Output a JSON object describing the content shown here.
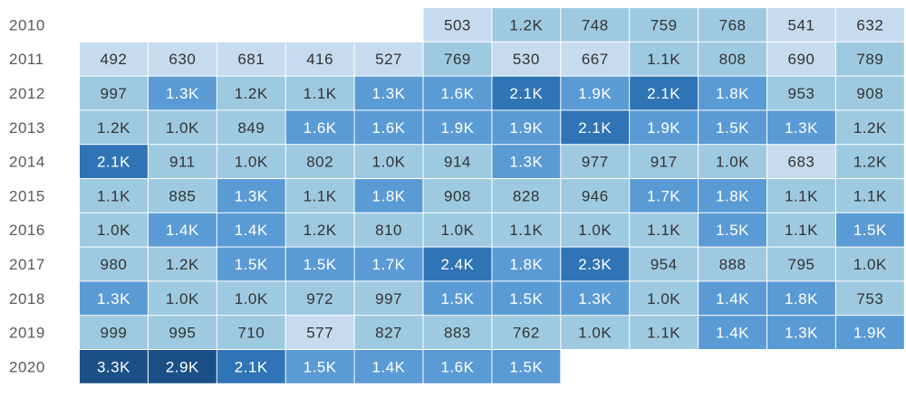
{
  "chart_data": {
    "type": "heatmap",
    "title": "",
    "xlabel": "",
    "ylabel": "",
    "rows": [
      "2010",
      "2011",
      "2012",
      "2013",
      "2014",
      "2015",
      "2016",
      "2017",
      "2018",
      "2019",
      "2020"
    ],
    "columns": 12,
    "row_start_column": [
      5,
      0,
      0,
      0,
      0,
      0,
      0,
      0,
      0,
      0,
      0
    ],
    "values": [
      [
        503,
        1200,
        748,
        759,
        768,
        541,
        632
      ],
      [
        492,
        630,
        681,
        416,
        527,
        769,
        530,
        667,
        1100,
        808,
        690,
        789
      ],
      [
        997,
        1300,
        1200,
        1100,
        1300,
        1600,
        2100,
        1900,
        2100,
        1800,
        953,
        908
      ],
      [
        1200,
        1000,
        849,
        1600,
        1600,
        1900,
        1900,
        2100,
        1900,
        1500,
        1300,
        1200
      ],
      [
        2100,
        911,
        1000,
        802,
        1000,
        914,
        1300,
        977,
        917,
        1000,
        683,
        1200
      ],
      [
        1100,
        885,
        1300,
        1100,
        1800,
        908,
        828,
        946,
        1700,
        1800,
        1100,
        1100
      ],
      [
        1000,
        1400,
        1400,
        1200,
        810,
        1000,
        1100,
        1000,
        1100,
        1500,
        1100,
        1500
      ],
      [
        980,
        1200,
        1500,
        1500,
        1700,
        2400,
        1800,
        2300,
        954,
        888,
        795,
        1000
      ],
      [
        1300,
        1000,
        1000,
        972,
        997,
        1500,
        1500,
        1300,
        1000,
        1400,
        1800,
        753
      ],
      [
        999,
        995,
        710,
        577,
        827,
        883,
        762,
        1000,
        1100,
        1400,
        1300,
        1900
      ],
      [
        3300,
        2900,
        2100,
        1500,
        1400,
        1600,
        1500
      ]
    ],
    "labels": [
      [
        "503",
        "1.2K",
        "748",
        "759",
        "768",
        "541",
        "632"
      ],
      [
        "492",
        "630",
        "681",
        "416",
        "527",
        "769",
        "530",
        "667",
        "1.1K",
        "808",
        "690",
        "789"
      ],
      [
        "997",
        "1.3K",
        "1.2K",
        "1.1K",
        "1.3K",
        "1.6K",
        "2.1K",
        "1.9K",
        "2.1K",
        "1.8K",
        "953",
        "908"
      ],
      [
        "1.2K",
        "1.0K",
        "849",
        "1.6K",
        "1.6K",
        "1.9K",
        "1.9K",
        "2.1K",
        "1.9K",
        "1.5K",
        "1.3K",
        "1.2K"
      ],
      [
        "2.1K",
        "911",
        "1.0K",
        "802",
        "1.0K",
        "914",
        "1.3K",
        "977",
        "917",
        "1.0K",
        "683",
        "1.2K"
      ],
      [
        "1.1K",
        "885",
        "1.3K",
        "1.1K",
        "1.8K",
        "908",
        "828",
        "946",
        "1.7K",
        "1.8K",
        "1.1K",
        "1.1K"
      ],
      [
        "1.0K",
        "1.4K",
        "1.4K",
        "1.2K",
        "810",
        "1.0K",
        "1.1K",
        "1.0K",
        "1.1K",
        "1.5K",
        "1.1K",
        "1.5K"
      ],
      [
        "980",
        "1.2K",
        "1.5K",
        "1.5K",
        "1.7K",
        "2.4K",
        "1.8K",
        "2.3K",
        "954",
        "888",
        "795",
        "1.0K"
      ],
      [
        "1.3K",
        "1.0K",
        "1.0K",
        "972",
        "997",
        "1.5K",
        "1.5K",
        "1.3K",
        "1.0K",
        "1.4K",
        "1.8K",
        "753"
      ],
      [
        "999",
        "995",
        "710",
        "577",
        "827",
        "883",
        "762",
        "1.0K",
        "1.1K",
        "1.4K",
        "1.3K",
        "1.9K"
      ],
      [
        "3.3K",
        "2.9K",
        "2.1K",
        "1.5K",
        "1.4K",
        "1.6K",
        "1.5K"
      ]
    ],
    "color_bins": [
      {
        "max": 700,
        "fill": "#c6dbef",
        "text": "#333333"
      },
      {
        "max": 1250,
        "fill": "#9ecae1",
        "text": "#333333"
      },
      {
        "max": 1950,
        "fill": "#5b9bd5",
        "text": "#ffffff"
      },
      {
        "max": 2450,
        "fill": "#2f74b5",
        "text": "#ffffff"
      },
      {
        "max": 99999,
        "fill": "#1b5087",
        "text": "#ffffff"
      }
    ]
  }
}
